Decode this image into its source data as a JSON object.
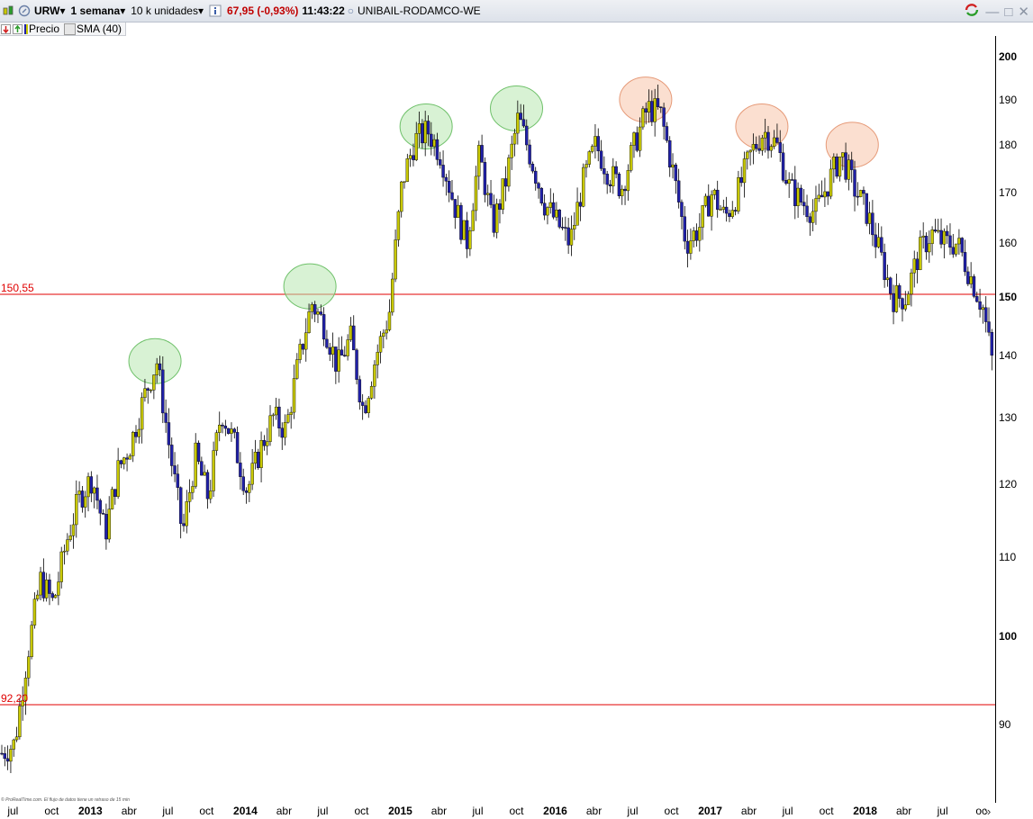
{
  "toolbar": {
    "symbol": "URW",
    "period": "1 semana",
    "units": "10 k unidades",
    "price_change": "67,95 (-0,93%)",
    "time": "11:43:22",
    "instrument": "UNIBAIL-RODAMCO-WE"
  },
  "legend": {
    "price_label": "Precio",
    "sma_label": "SMA (40)"
  },
  "colors": {
    "up": "#c8c800",
    "down": "#2020a8",
    "hline": "#e00000",
    "green_circle": "#b8e8b0",
    "red_circle": "#f8c4aa"
  },
  "footnote": "© ProRealTime.com. El flujo de datos tiene un retraso de 15 min",
  "chart_data": {
    "type": "candlestick",
    "x_range": [
      "2012-06",
      "2018-11"
    ],
    "ylim": [
      82,
      205
    ],
    "y_scale": "log",
    "y_ticks": [
      {
        "value": 90,
        "label": "90",
        "major": false
      },
      {
        "value": 100,
        "label": "100",
        "major": true
      },
      {
        "value": 110,
        "label": "110",
        "major": false
      },
      {
        "value": 120,
        "label": "120",
        "major": false
      },
      {
        "value": 130,
        "label": "130",
        "major": false
      },
      {
        "value": 140,
        "label": "140",
        "major": false
      },
      {
        "value": 150,
        "label": "150",
        "major": true
      },
      {
        "value": 160,
        "label": "160",
        "major": false
      },
      {
        "value": 170,
        "label": "170",
        "major": false
      },
      {
        "value": 180,
        "label": "180",
        "major": false
      },
      {
        "value": 190,
        "label": "190",
        "major": false
      },
      {
        "value": 200,
        "label": "200",
        "major": true
      }
    ],
    "x_ticks": [
      {
        "date": "2012-07",
        "label": "jul",
        "year": false
      },
      {
        "date": "2012-10",
        "label": "oct",
        "year": false
      },
      {
        "date": "2013-01",
        "label": "2013",
        "year": true
      },
      {
        "date": "2013-04",
        "label": "abr",
        "year": false
      },
      {
        "date": "2013-07",
        "label": "jul",
        "year": false
      },
      {
        "date": "2013-10",
        "label": "oct",
        "year": false
      },
      {
        "date": "2014-01",
        "label": "2014",
        "year": true
      },
      {
        "date": "2014-04",
        "label": "abr",
        "year": false
      },
      {
        "date": "2014-07",
        "label": "jul",
        "year": false
      },
      {
        "date": "2014-10",
        "label": "oct",
        "year": false
      },
      {
        "date": "2015-01",
        "label": "2015",
        "year": true
      },
      {
        "date": "2015-04",
        "label": "abr",
        "year": false
      },
      {
        "date": "2015-07",
        "label": "jul",
        "year": false
      },
      {
        "date": "2015-10",
        "label": "oct",
        "year": false
      },
      {
        "date": "2016-01",
        "label": "2016",
        "year": true
      },
      {
        "date": "2016-04",
        "label": "abr",
        "year": false
      },
      {
        "date": "2016-07",
        "label": "jul",
        "year": false
      },
      {
        "date": "2016-10",
        "label": "oct",
        "year": false
      },
      {
        "date": "2017-01",
        "label": "2017",
        "year": true
      },
      {
        "date": "2017-04",
        "label": "abr",
        "year": false
      },
      {
        "date": "2017-07",
        "label": "jul",
        "year": false
      },
      {
        "date": "2017-10",
        "label": "oct",
        "year": false
      },
      {
        "date": "2018-01",
        "label": "2018",
        "year": true
      },
      {
        "date": "2018-04",
        "label": "abr",
        "year": false
      },
      {
        "date": "2018-07",
        "label": "jul",
        "year": false
      },
      {
        "date": "2018-10",
        "label": "oc",
        "year": false
      }
    ],
    "horizontal_lines": [
      {
        "value": 150.55,
        "label": "150,55"
      },
      {
        "value": 92.2,
        "label": "92,20"
      }
    ],
    "annotations": [
      {
        "type": "circle",
        "color": "green",
        "date": "2013-06",
        "price": 139
      },
      {
        "type": "circle",
        "color": "green",
        "date": "2014-06",
        "price": 152
      },
      {
        "type": "circle",
        "color": "green",
        "date": "2015-03",
        "price": 184
      },
      {
        "type": "circle",
        "color": "green",
        "date": "2015-10",
        "price": 188
      },
      {
        "type": "circle",
        "color": "red",
        "date": "2016-08",
        "price": 190
      },
      {
        "type": "circle",
        "color": "red",
        "date": "2017-05",
        "price": 184
      },
      {
        "type": "circle",
        "color": "red",
        "date": "2017-12",
        "price": 180
      }
    ],
    "series": [
      {
        "price_path": [
          [
            "2012-06",
            87
          ],
          [
            "2012-07",
            88
          ],
          [
            "2012-08",
            98
          ],
          [
            "2012-09",
            107
          ],
          [
            "2012-10",
            104
          ],
          [
            "2012-11",
            112
          ],
          [
            "2012-12",
            118
          ],
          [
            "2013-01",
            121
          ],
          [
            "2013-02",
            113
          ],
          [
            "2013-03",
            122
          ],
          [
            "2013-04",
            126
          ],
          [
            "2013-05",
            133
          ],
          [
            "2013-06",
            139
          ],
          [
            "2013-07",
            125
          ],
          [
            "2013-08",
            113
          ],
          [
            "2013-09",
            124
          ],
          [
            "2013-10",
            118
          ],
          [
            "2013-11",
            131
          ],
          [
            "2013-12",
            126
          ],
          [
            "2014-01",
            119
          ],
          [
            "2014-02",
            125
          ],
          [
            "2014-03",
            130
          ],
          [
            "2014-04",
            128
          ],
          [
            "2014-05",
            139
          ],
          [
            "2014-06",
            149
          ],
          [
            "2014-07",
            145
          ],
          [
            "2014-08",
            138
          ],
          [
            "2014-09",
            143
          ],
          [
            "2014-10",
            131
          ],
          [
            "2014-11",
            140
          ],
          [
            "2014-12",
            147
          ],
          [
            "2015-01",
            172
          ],
          [
            "2015-02",
            181
          ],
          [
            "2015-03",
            183
          ],
          [
            "2015-04",
            178
          ],
          [
            "2015-05",
            168
          ],
          [
            "2015-06",
            160
          ],
          [
            "2015-07",
            178
          ],
          [
            "2015-08",
            163
          ],
          [
            "2015-09",
            172
          ],
          [
            "2015-10",
            186
          ],
          [
            "2015-11",
            177
          ],
          [
            "2015-12",
            168
          ],
          [
            "2016-01",
            164
          ],
          [
            "2016-02",
            160
          ],
          [
            "2016-03",
            172
          ],
          [
            "2016-04",
            180
          ],
          [
            "2016-05",
            174
          ],
          [
            "2016-06",
            171
          ],
          [
            "2016-07",
            180
          ],
          [
            "2016-08",
            188
          ],
          [
            "2016-09",
            187
          ],
          [
            "2016-10",
            174
          ],
          [
            "2016-11",
            160
          ],
          [
            "2016-12",
            163
          ],
          [
            "2017-01",
            170
          ],
          [
            "2017-02",
            165
          ],
          [
            "2017-03",
            170
          ],
          [
            "2017-04",
            178
          ],
          [
            "2017-05",
            183
          ],
          [
            "2017-06",
            180
          ],
          [
            "2017-07",
            171
          ],
          [
            "2017-08",
            168
          ],
          [
            "2017-09",
            166
          ],
          [
            "2017-10",
            172
          ],
          [
            "2017-11",
            178
          ],
          [
            "2017-12",
            171
          ],
          [
            "2018-01",
            166
          ],
          [
            "2018-02",
            158
          ],
          [
            "2018-03",
            150
          ],
          [
            "2018-04",
            150
          ],
          [
            "2018-05",
            158
          ],
          [
            "2018-06",
            162
          ],
          [
            "2018-07",
            160
          ],
          [
            "2018-08",
            160
          ],
          [
            "2018-09",
            154
          ],
          [
            "2018-10",
            148
          ],
          [
            "2018-11",
            135
          ]
        ]
      }
    ]
  }
}
